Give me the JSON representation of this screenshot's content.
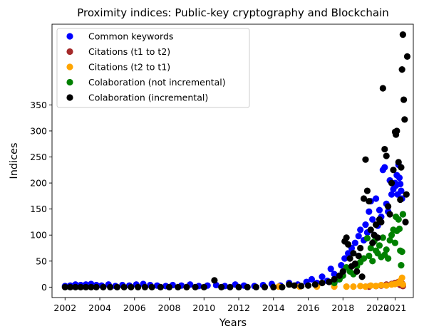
{
  "chart_data": {
    "type": "scatter",
    "title": "Proximity indices: Public-key cryptography and Blockchain",
    "xlabel": "Years",
    "ylabel": "Indices",
    "xlim": [
      2001.25,
      2022.05
    ],
    "ylim": [
      -20,
      505
    ],
    "xticks": [
      2002,
      2004,
      2006,
      2008,
      2010,
      2012,
      2014,
      2016,
      2018,
      2020,
      2021
    ],
    "yticks": [
      0,
      50,
      100,
      150,
      200,
      250,
      300,
      350
    ],
    "grid": false,
    "legend_position": "top-left",
    "series": [
      {
        "name": "Common keywords",
        "color": "#0000ff",
        "points": [
          [
            2002.0,
            2
          ],
          [
            2002.3,
            3
          ],
          [
            2002.6,
            5
          ],
          [
            2002.9,
            4
          ],
          [
            2003.2,
            5
          ],
          [
            2003.5,
            6
          ],
          [
            2003.8,
            4
          ],
          [
            2004.1,
            3
          ],
          [
            2004.5,
            5
          ],
          [
            2004.9,
            2
          ],
          [
            2005.3,
            4
          ],
          [
            2005.7,
            3
          ],
          [
            2006.1,
            5
          ],
          [
            2006.5,
            6
          ],
          [
            2006.9,
            4
          ],
          [
            2007.3,
            3
          ],
          [
            2007.8,
            2
          ],
          [
            2008.2,
            4
          ],
          [
            2008.7,
            3
          ],
          [
            2009.2,
            5
          ],
          [
            2009.7,
            2
          ],
          [
            2010.2,
            3
          ],
          [
            2010.7,
            4
          ],
          [
            2011.2,
            2
          ],
          [
            2011.8,
            5
          ],
          [
            2012.3,
            3
          ],
          [
            2012.9,
            2
          ],
          [
            2013.4,
            4
          ],
          [
            2013.9,
            6
          ],
          [
            2014.4,
            3
          ],
          [
            2014.9,
            8
          ],
          [
            2015.4,
            5
          ],
          [
            2015.9,
            10
          ],
          [
            2016.2,
            15
          ],
          [
            2016.5,
            8
          ],
          [
            2016.8,
            20
          ],
          [
            2017.1,
            12
          ],
          [
            2017.3,
            35
          ],
          [
            2017.5,
            25
          ],
          [
            2017.7,
            15
          ],
          [
            2017.9,
            42
          ],
          [
            2018.0,
            30
          ],
          [
            2018.1,
            55
          ],
          [
            2018.3,
            65
          ],
          [
            2018.5,
            75
          ],
          [
            2018.7,
            85
          ],
          [
            2018.9,
            98
          ],
          [
            2019.0,
            110
          ],
          [
            2019.2,
            90
          ],
          [
            2019.3,
            120
          ],
          [
            2019.4,
            105
          ],
          [
            2019.5,
            145
          ],
          [
            2019.6,
            165
          ],
          [
            2019.7,
            130
          ],
          [
            2019.8,
            100
          ],
          [
            2019.9,
            170
          ],
          [
            2020.0,
            118
          ],
          [
            2020.1,
            148
          ],
          [
            2020.2,
            135
          ],
          [
            2020.3,
            225
          ],
          [
            2020.4,
            230
          ],
          [
            2020.5,
            160
          ],
          [
            2020.6,
            145
          ],
          [
            2020.7,
            205
          ],
          [
            2020.8,
            178
          ],
          [
            2020.9,
            188
          ],
          [
            2021.0,
            200
          ],
          [
            2021.05,
            195
          ],
          [
            2021.1,
            215
          ],
          [
            2021.15,
            178
          ],
          [
            2021.2,
            235
          ],
          [
            2021.25,
            210
          ],
          [
            2021.3,
            198
          ],
          [
            2021.35,
            185
          ],
          [
            2021.4,
            170
          ],
          [
            2021.45,
            140
          ]
        ]
      },
      {
        "name": "Citations (t1 to t2)",
        "color": "#a52a2a",
        "points": [
          [
            2019.5,
            1
          ],
          [
            2019.9,
            2
          ],
          [
            2020.2,
            3
          ],
          [
            2020.5,
            5
          ],
          [
            2020.8,
            6
          ],
          [
            2021.0,
            8
          ],
          [
            2021.2,
            10
          ],
          [
            2021.3,
            4
          ],
          [
            2021.4,
            7
          ],
          [
            2021.45,
            2
          ]
        ]
      },
      {
        "name": "Citations (t2 to t1)",
        "color": "#ffa500",
        "points": [
          [
            2009.0,
            0
          ],
          [
            2014.3,
            1
          ],
          [
            2015.5,
            1
          ],
          [
            2016.5,
            1
          ],
          [
            2017.5,
            1
          ],
          [
            2018.2,
            1
          ],
          [
            2018.6,
            1
          ],
          [
            2019.0,
            2
          ],
          [
            2019.3,
            1
          ],
          [
            2019.6,
            3
          ],
          [
            2019.9,
            2
          ],
          [
            2020.2,
            4
          ],
          [
            2020.5,
            3
          ],
          [
            2020.8,
            5
          ],
          [
            2021.0,
            6
          ],
          [
            2021.2,
            8
          ],
          [
            2021.3,
            12
          ],
          [
            2021.4,
            18
          ],
          [
            2021.45,
            5
          ]
        ]
      },
      {
        "name": "Colaboration (not incremental)",
        "color": "#008000",
        "points": [
          [
            2017.5,
            8
          ],
          [
            2017.8,
            15
          ],
          [
            2018.0,
            22
          ],
          [
            2018.2,
            38
          ],
          [
            2018.4,
            30
          ],
          [
            2018.6,
            25
          ],
          [
            2018.8,
            40
          ],
          [
            2019.0,
            48
          ],
          [
            2019.2,
            55
          ],
          [
            2019.4,
            94
          ],
          [
            2019.5,
            60
          ],
          [
            2019.6,
            75
          ],
          [
            2019.7,
            50
          ],
          [
            2019.8,
            88
          ],
          [
            2019.9,
            70
          ],
          [
            2020.0,
            65
          ],
          [
            2020.1,
            80
          ],
          [
            2020.2,
            58
          ],
          [
            2020.3,
            95
          ],
          [
            2020.4,
            62
          ],
          [
            2020.5,
            72
          ],
          [
            2020.6,
            55
          ],
          [
            2020.7,
            90
          ],
          [
            2020.8,
            100
          ],
          [
            2020.9,
            110
          ],
          [
            2021.0,
            85
          ],
          [
            2021.05,
            135
          ],
          [
            2021.1,
            108
          ],
          [
            2021.2,
            130
          ],
          [
            2021.25,
            112
          ],
          [
            2021.3,
            70
          ],
          [
            2021.35,
            42
          ],
          [
            2021.4,
            68
          ],
          [
            2021.45,
            140
          ]
        ]
      },
      {
        "name": "Colaboration (incremental)",
        "color": "#000000",
        "points": [
          [
            2002.0,
            0
          ],
          [
            2002.3,
            0
          ],
          [
            2002.6,
            0
          ],
          [
            2002.9,
            0
          ],
          [
            2003.2,
            0
          ],
          [
            2003.5,
            0
          ],
          [
            2003.8,
            0
          ],
          [
            2004.2,
            0
          ],
          [
            2004.6,
            0
          ],
          [
            2005.0,
            0
          ],
          [
            2005.4,
            0
          ],
          [
            2005.8,
            0
          ],
          [
            2006.2,
            0
          ],
          [
            2006.6,
            0
          ],
          [
            2007.0,
            0
          ],
          [
            2007.5,
            0
          ],
          [
            2008.0,
            0
          ],
          [
            2008.5,
            0
          ],
          [
            2009.0,
            0
          ],
          [
            2009.5,
            0
          ],
          [
            2010.0,
            0
          ],
          [
            2010.6,
            13
          ],
          [
            2011.0,
            0
          ],
          [
            2011.5,
            0
          ],
          [
            2012.0,
            0
          ],
          [
            2012.5,
            0
          ],
          [
            2013.0,
            0
          ],
          [
            2013.5,
            0
          ],
          [
            2014.0,
            0
          ],
          [
            2014.5,
            0
          ],
          [
            2014.9,
            5
          ],
          [
            2015.2,
            3
          ],
          [
            2015.6,
            2
          ],
          [
            2016.0,
            3
          ],
          [
            2016.4,
            5
          ],
          [
            2016.8,
            8
          ],
          [
            2017.2,
            10
          ],
          [
            2017.5,
            15
          ],
          [
            2017.8,
            22
          ],
          [
            2018.0,
            30
          ],
          [
            2018.1,
            88
          ],
          [
            2018.2,
            95
          ],
          [
            2018.3,
            82
          ],
          [
            2018.4,
            55
          ],
          [
            2018.5,
            40
          ],
          [
            2018.6,
            65
          ],
          [
            2018.7,
            45
          ],
          [
            2018.8,
            30
          ],
          [
            2018.9,
            60
          ],
          [
            2019.0,
            75
          ],
          [
            2019.1,
            20
          ],
          [
            2019.2,
            170
          ],
          [
            2019.3,
            245
          ],
          [
            2019.4,
            185
          ],
          [
            2019.5,
            165
          ],
          [
            2019.6,
            110
          ],
          [
            2019.7,
            85
          ],
          [
            2019.8,
            100
          ],
          [
            2019.9,
            120
          ],
          [
            2020.0,
            95
          ],
          [
            2020.1,
            130
          ],
          [
            2020.2,
            125
          ],
          [
            2020.3,
            382
          ],
          [
            2020.4,
            265
          ],
          [
            2020.5,
            252
          ],
          [
            2020.6,
            155
          ],
          [
            2020.7,
            140
          ],
          [
            2020.8,
            200
          ],
          [
            2020.9,
            225
          ],
          [
            2021.0,
            298
          ],
          [
            2021.05,
            293
          ],
          [
            2021.1,
            300
          ],
          [
            2021.2,
            240
          ],
          [
            2021.3,
            168
          ],
          [
            2021.35,
            230
          ],
          [
            2021.4,
            418
          ],
          [
            2021.45,
            485
          ],
          [
            2021.5,
            360
          ],
          [
            2021.55,
            322
          ],
          [
            2021.6,
            125
          ],
          [
            2021.65,
            178
          ],
          [
            2021.7,
            443
          ]
        ]
      }
    ]
  }
}
